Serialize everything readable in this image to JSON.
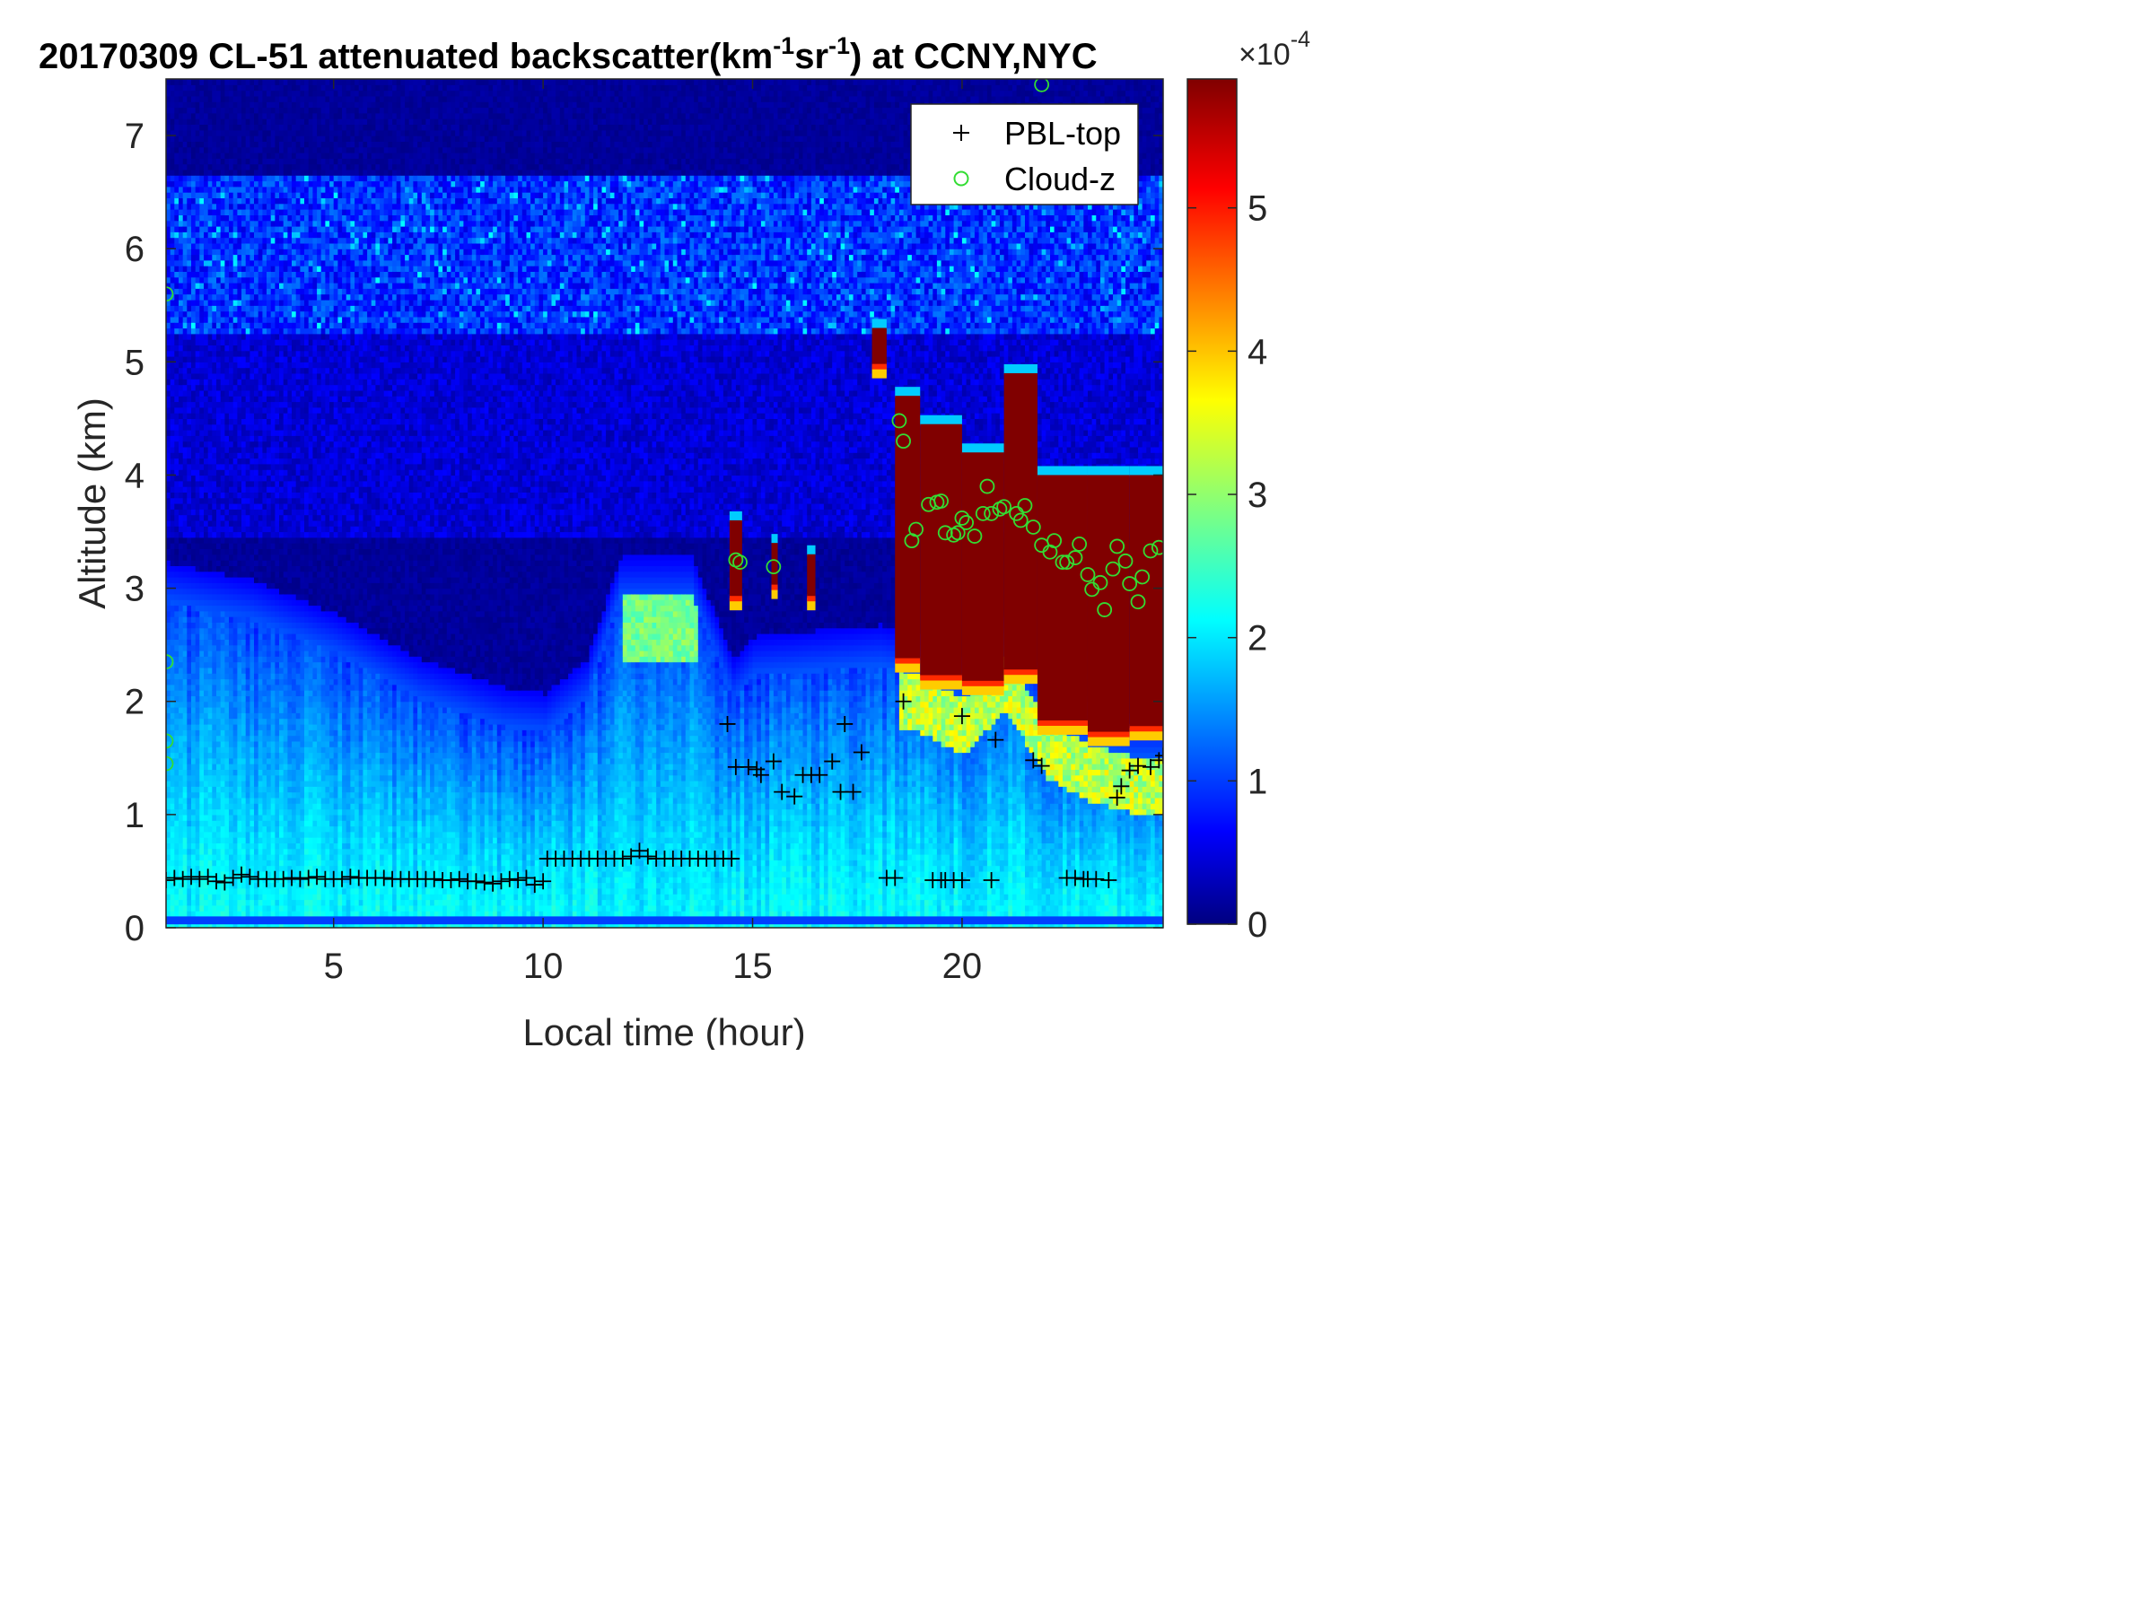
{
  "chart_data": {
    "type": "heatmap",
    "title_parts": [
      "20170309  CL-51 attenuated backscatter(km",
      "-1",
      "sr",
      "-1",
      ") at CCNY,NYC"
    ],
    "xlabel": "Local time (hour)",
    "ylabel": "Altitude (km)",
    "xlim": [
      1,
      24.8
    ],
    "ylim": [
      0,
      7.5
    ],
    "xticks": [
      5,
      10,
      15,
      20
    ],
    "yticks": [
      0,
      1,
      2,
      3,
      4,
      5,
      6,
      7
    ],
    "colorbar": {
      "colormap": "jet",
      "clim": [
        0,
        5.9
      ],
      "ticks": [
        0,
        1,
        2,
        3,
        4,
        5
      ],
      "exponent_label": "×10",
      "exponent_power": "-4"
    },
    "legend": {
      "placement": "top-right",
      "entries": [
        {
          "label": "PBL-top",
          "marker": "+",
          "color": "#000000"
        },
        {
          "label": "Cloud-z",
          "marker": "o",
          "color": "#33dd33"
        }
      ]
    },
    "background_field": {
      "description_units": "x1e-4 km-1 sr-1",
      "boundary_layer_top_km": [
        [
          1,
          2.85
        ],
        [
          3,
          2.7
        ],
        [
          5,
          2.4
        ],
        [
          7,
          2.0
        ],
        [
          9,
          1.75
        ],
        [
          10,
          1.7
        ],
        [
          11,
          2.0
        ],
        [
          11.8,
          2.9
        ],
        [
          13.5,
          2.9
        ],
        [
          14.5,
          2.0
        ],
        [
          15,
          2.2
        ],
        [
          18,
          2.3
        ],
        [
          19,
          2.2
        ],
        [
          20,
          2.0
        ],
        [
          21,
          2.4
        ],
        [
          22,
          1.8
        ],
        [
          23,
          1.6
        ],
        [
          24,
          1.5
        ],
        [
          24.8,
          1.5
        ]
      ],
      "aerosol_layer_km": [
        5.2,
        6.6
      ]
    },
    "cloud_blocks": [
      {
        "x": [
          14.45,
          14.75
        ],
        "y": [
          2.9,
          3.6
        ]
      },
      {
        "x": [
          15.45,
          15.6
        ],
        "y": [
          3.0,
          3.4
        ]
      },
      {
        "x": [
          16.3,
          16.5
        ],
        "y": [
          2.9,
          3.3
        ]
      },
      {
        "x": [
          17.85,
          18.2
        ],
        "y": [
          4.95,
          5.3
        ]
      },
      {
        "x": [
          18.4,
          19.0
        ],
        "y": [
          2.35,
          4.7
        ]
      },
      {
        "x": [
          19.0,
          20.0
        ],
        "y": [
          2.2,
          4.45
        ]
      },
      {
        "x": [
          20.0,
          21.0
        ],
        "y": [
          2.15,
          4.2
        ]
      },
      {
        "x": [
          21.0,
          21.8
        ],
        "y": [
          2.25,
          4.9
        ]
      },
      {
        "x": [
          21.8,
          23.0
        ],
        "y": [
          1.8,
          4.0
        ]
      },
      {
        "x": [
          23.0,
          24.0
        ],
        "y": [
          1.7,
          4.0
        ]
      },
      {
        "x": [
          24.0,
          24.8
        ],
        "y": [
          1.75,
          4.0
        ]
      }
    ],
    "series": [
      {
        "name": "PBL-top",
        "marker": "+",
        "points": [
          [
            1.0,
            0.42
          ],
          [
            1.2,
            0.44
          ],
          [
            1.4,
            0.43
          ],
          [
            1.6,
            0.45
          ],
          [
            1.8,
            0.43
          ],
          [
            2.0,
            0.45
          ],
          [
            2.2,
            0.41
          ],
          [
            2.4,
            0.4
          ],
          [
            2.6,
            0.44
          ],
          [
            2.8,
            0.47
          ],
          [
            3.0,
            0.45
          ],
          [
            3.2,
            0.43
          ],
          [
            3.4,
            0.43
          ],
          [
            3.6,
            0.43
          ],
          [
            3.8,
            0.43
          ],
          [
            4.0,
            0.44
          ],
          [
            4.2,
            0.43
          ],
          [
            4.4,
            0.44
          ],
          [
            4.6,
            0.45
          ],
          [
            4.8,
            0.43
          ],
          [
            5.0,
            0.43
          ],
          [
            5.2,
            0.43
          ],
          [
            5.4,
            0.45
          ],
          [
            5.6,
            0.44
          ],
          [
            5.8,
            0.44
          ],
          [
            6.0,
            0.44
          ],
          [
            6.2,
            0.44
          ],
          [
            6.4,
            0.43
          ],
          [
            6.6,
            0.43
          ],
          [
            6.8,
            0.43
          ],
          [
            7.0,
            0.43
          ],
          [
            7.2,
            0.43
          ],
          [
            7.4,
            0.43
          ],
          [
            7.6,
            0.42
          ],
          [
            7.8,
            0.42
          ],
          [
            8.0,
            0.43
          ],
          [
            8.2,
            0.41
          ],
          [
            8.4,
            0.41
          ],
          [
            8.6,
            0.4
          ],
          [
            8.8,
            0.39
          ],
          [
            9.0,
            0.41
          ],
          [
            9.2,
            0.43
          ],
          [
            9.4,
            0.42
          ],
          [
            9.6,
            0.44
          ],
          [
            9.8,
            0.38
          ],
          [
            10.0,
            0.41
          ],
          [
            10.1,
            0.61
          ],
          [
            10.3,
            0.61
          ],
          [
            10.5,
            0.61
          ],
          [
            10.7,
            0.61
          ],
          [
            10.9,
            0.61
          ],
          [
            11.1,
            0.61
          ],
          [
            11.3,
            0.61
          ],
          [
            11.5,
            0.61
          ],
          [
            11.7,
            0.61
          ],
          [
            11.9,
            0.61
          ],
          [
            12.1,
            0.63
          ],
          [
            12.3,
            0.68
          ],
          [
            12.5,
            0.63
          ],
          [
            12.7,
            0.61
          ],
          [
            12.9,
            0.61
          ],
          [
            13.1,
            0.61
          ],
          [
            13.3,
            0.61
          ],
          [
            13.5,
            0.61
          ],
          [
            13.7,
            0.61
          ],
          [
            13.9,
            0.61
          ],
          [
            14.1,
            0.61
          ],
          [
            14.3,
            0.61
          ],
          [
            14.5,
            0.61
          ],
          [
            14.4,
            1.8
          ],
          [
            14.6,
            1.42
          ],
          [
            14.9,
            1.42
          ],
          [
            15.1,
            1.4
          ],
          [
            15.2,
            1.35
          ],
          [
            15.5,
            1.47
          ],
          [
            15.7,
            1.2
          ],
          [
            16.0,
            1.16
          ],
          [
            16.2,
            1.35
          ],
          [
            16.4,
            1.35
          ],
          [
            16.6,
            1.35
          ],
          [
            16.9,
            1.47
          ],
          [
            17.1,
            1.2
          ],
          [
            17.2,
            1.8
          ],
          [
            17.4,
            1.2
          ],
          [
            17.6,
            1.55
          ],
          [
            18.2,
            0.44
          ],
          [
            18.4,
            0.44
          ],
          [
            18.6,
            2.0
          ],
          [
            19.3,
            0.42
          ],
          [
            19.5,
            0.42
          ],
          [
            19.6,
            0.42
          ],
          [
            19.8,
            0.42
          ],
          [
            20.0,
            0.42
          ],
          [
            20.0,
            1.87
          ],
          [
            20.7,
            0.42
          ],
          [
            20.8,
            1.66
          ],
          [
            21.7,
            1.48
          ],
          [
            21.9,
            1.43
          ],
          [
            22.5,
            0.44
          ],
          [
            22.7,
            0.44
          ],
          [
            22.9,
            0.43
          ],
          [
            23.0,
            0.43
          ],
          [
            23.2,
            0.43
          ],
          [
            23.5,
            0.42
          ],
          [
            23.7,
            1.15
          ],
          [
            23.8,
            1.25
          ],
          [
            24.0,
            1.39
          ],
          [
            24.2,
            1.43
          ],
          [
            24.5,
            1.42
          ],
          [
            24.7,
            1.48
          ],
          [
            24.8,
            1.52
          ]
        ]
      },
      {
        "name": "Cloud-z",
        "marker": "o",
        "points": [
          [
            1.0,
            5.6
          ],
          [
            1.0,
            2.35
          ],
          [
            1.0,
            1.65
          ],
          [
            1.0,
            1.45
          ],
          [
            14.6,
            3.25
          ],
          [
            14.7,
            3.23
          ],
          [
            15.5,
            3.19
          ],
          [
            18.5,
            4.48
          ],
          [
            18.6,
            4.3
          ],
          [
            18.8,
            3.42
          ],
          [
            18.9,
            3.52
          ],
          [
            19.2,
            3.74
          ],
          [
            19.4,
            3.76
          ],
          [
            19.5,
            3.77
          ],
          [
            19.6,
            3.49
          ],
          [
            19.8,
            3.47
          ],
          [
            19.9,
            3.49
          ],
          [
            20.0,
            3.62
          ],
          [
            20.1,
            3.58
          ],
          [
            20.3,
            3.46
          ],
          [
            20.5,
            3.66
          ],
          [
            20.6,
            3.9
          ],
          [
            20.7,
            3.66
          ],
          [
            20.9,
            3.7
          ],
          [
            21.0,
            3.72
          ],
          [
            21.3,
            3.66
          ],
          [
            21.4,
            3.6
          ],
          [
            21.5,
            3.73
          ],
          [
            21.7,
            3.54
          ],
          [
            21.9,
            3.38
          ],
          [
            22.1,
            3.32
          ],
          [
            22.2,
            3.42
          ],
          [
            22.4,
            3.23
          ],
          [
            22.5,
            3.23
          ],
          [
            22.7,
            3.27
          ],
          [
            22.8,
            3.39
          ],
          [
            23.0,
            3.12
          ],
          [
            23.1,
            2.99
          ],
          [
            23.3,
            3.05
          ],
          [
            23.4,
            2.81
          ],
          [
            23.6,
            3.17
          ],
          [
            23.7,
            3.37
          ],
          [
            23.9,
            3.24
          ],
          [
            24.0,
            3.04
          ],
          [
            24.2,
            2.88
          ],
          [
            24.3,
            3.1
          ],
          [
            24.5,
            3.33
          ],
          [
            24.7,
            3.36
          ],
          [
            21.9,
            7.45
          ]
        ]
      }
    ]
  }
}
